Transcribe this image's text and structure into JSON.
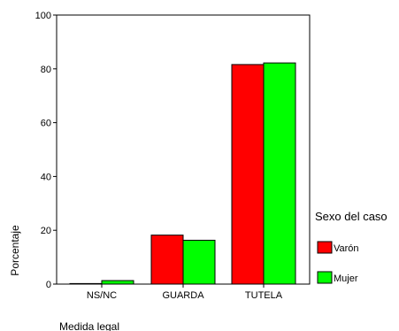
{
  "chart_data": {
    "type": "bar",
    "categories": [
      "NS/NC",
      "GUARDA",
      "TUTELA"
    ],
    "series": [
      {
        "name": "Varón",
        "values": [
          0.2,
          18.2,
          81.6
        ]
      },
      {
        "name": "Mujer",
        "values": [
          1.3,
          16.3,
          82.2
        ]
      }
    ],
    "colors": [
      "#ff0000",
      "#00ff00"
    ],
    "xlabel": "Medida legal",
    "ylabel": "Porcentaje",
    "yticks": [
      0,
      20,
      40,
      60,
      80,
      100
    ],
    "ylim": [
      0,
      100
    ],
    "legend": {
      "title": "Sexo del caso",
      "placement": "right"
    },
    "grid": false
  }
}
